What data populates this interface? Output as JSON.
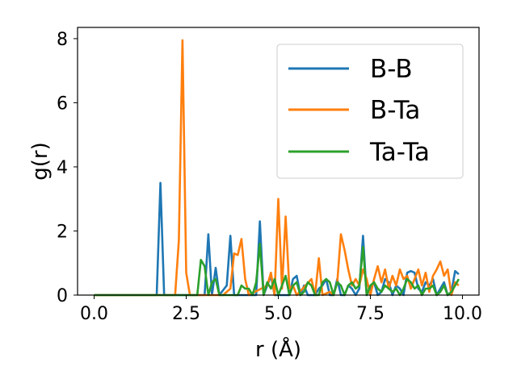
{
  "chart_data": {
    "type": "line",
    "title": "",
    "xlabel": "r (Å)",
    "ylabel": "g(r)",
    "xlim": [
      -0.45,
      10.45
    ],
    "ylim": [
      0,
      8.35
    ],
    "xticks": [
      "0.0",
      "2.5",
      "5.0",
      "7.5",
      "10.0"
    ],
    "yticks": [
      "0",
      "2",
      "4",
      "6",
      "8"
    ],
    "xtick_values": [
      0,
      2.5,
      5,
      7.5,
      10
    ],
    "ytick_values": [
      0,
      2,
      4,
      6,
      8
    ],
    "grid": false,
    "legend_position": "top-right",
    "series": [
      {
        "name": "B-B",
        "color": "#1f77b4",
        "points": [
          [
            0,
            0
          ],
          [
            1.7,
            0
          ],
          [
            1.8,
            3.5
          ],
          [
            1.9,
            0
          ],
          [
            2.1,
            0
          ],
          [
            2.2,
            0
          ],
          [
            3.0,
            0
          ],
          [
            3.1,
            1.9
          ],
          [
            3.2,
            0
          ],
          [
            3.3,
            0.85
          ],
          [
            3.4,
            0
          ],
          [
            3.6,
            0.3
          ],
          [
            3.7,
            1.85
          ],
          [
            3.8,
            0
          ],
          [
            4.4,
            0
          ],
          [
            4.5,
            2.3
          ],
          [
            4.6,
            0
          ],
          [
            4.8,
            0.6
          ],
          [
            4.9,
            0
          ],
          [
            5.3,
            0
          ],
          [
            5.4,
            0.5
          ],
          [
            5.5,
            0.6
          ],
          [
            5.6,
            0
          ],
          [
            5.7,
            0.3
          ],
          [
            5.8,
            0
          ],
          [
            6.0,
            0
          ],
          [
            6.1,
            0.2
          ],
          [
            6.2,
            0.3
          ],
          [
            6.3,
            0.5
          ],
          [
            6.4,
            0
          ],
          [
            6.5,
            0
          ],
          [
            6.6,
            0.5
          ],
          [
            6.7,
            0
          ],
          [
            6.8,
            0
          ],
          [
            6.9,
            0.3
          ],
          [
            7.0,
            0.2
          ],
          [
            7.1,
            0
          ],
          [
            7.2,
            0.2
          ],
          [
            7.3,
            1.85
          ],
          [
            7.4,
            0
          ],
          [
            7.5,
            0.2
          ],
          [
            7.6,
            0.4
          ],
          [
            7.7,
            0
          ],
          [
            7.8,
            0.1
          ],
          [
            7.9,
            0.5
          ],
          [
            8.0,
            0.4
          ],
          [
            8.1,
            0
          ],
          [
            8.2,
            0.3
          ],
          [
            8.3,
            0.2
          ],
          [
            8.4,
            0
          ],
          [
            8.5,
            0.7
          ],
          [
            8.6,
            0.75
          ],
          [
            8.7,
            0.7
          ],
          [
            8.8,
            0.2
          ],
          [
            8.9,
            0.1
          ],
          [
            9.0,
            0.4
          ],
          [
            9.1,
            0.3
          ],
          [
            9.2,
            0.5
          ],
          [
            9.3,
            0
          ],
          [
            9.4,
            0.2
          ],
          [
            9.5,
            0.4
          ],
          [
            9.6,
            0
          ],
          [
            9.7,
            0.1
          ],
          [
            9.8,
            0.75
          ],
          [
            9.9,
            0.65
          ]
        ]
      },
      {
        "name": "B-Ta",
        "color": "#ff7f0e",
        "points": [
          [
            0,
            0
          ],
          [
            2.2,
            0
          ],
          [
            2.3,
            1.7
          ],
          [
            2.4,
            7.95
          ],
          [
            2.5,
            0.7
          ],
          [
            2.6,
            0
          ],
          [
            3.5,
            0
          ],
          [
            3.7,
            0.2
          ],
          [
            3.8,
            1.3
          ],
          [
            3.9,
            1.25
          ],
          [
            4.0,
            1.75
          ],
          [
            4.1,
            0.5
          ],
          [
            4.2,
            0
          ],
          [
            4.7,
            0.3
          ],
          [
            4.8,
            0.7
          ],
          [
            4.9,
            0
          ],
          [
            5.0,
            3.0
          ],
          [
            5.1,
            0.2
          ],
          [
            5.2,
            2.45
          ],
          [
            5.3,
            0.2
          ],
          [
            5.4,
            0.3
          ],
          [
            5.5,
            0
          ],
          [
            5.9,
            0.5
          ],
          [
            6.0,
            0
          ],
          [
            6.1,
            1.15
          ],
          [
            6.2,
            0
          ],
          [
            6.4,
            0.1
          ],
          [
            6.5,
            0
          ],
          [
            6.6,
            0.4
          ],
          [
            6.7,
            1.9
          ],
          [
            6.8,
            1.4
          ],
          [
            6.9,
            0.8
          ],
          [
            7.0,
            0.3
          ],
          [
            7.1,
            0.5
          ],
          [
            7.2,
            0.3
          ],
          [
            7.3,
            0.8
          ],
          [
            7.4,
            0.5
          ],
          [
            7.5,
            0
          ],
          [
            7.6,
            0.5
          ],
          [
            7.7,
            0.9
          ],
          [
            7.8,
            0.4
          ],
          [
            7.9,
            0.8
          ],
          [
            8.0,
            0.2
          ],
          [
            8.1,
            0.6
          ],
          [
            8.2,
            0.3
          ],
          [
            8.3,
            0.8
          ],
          [
            8.4,
            0.5
          ],
          [
            8.5,
            0.6
          ],
          [
            8.6,
            0.2
          ],
          [
            8.7,
            0.5
          ],
          [
            8.8,
            0.8
          ],
          [
            8.9,
            0.3
          ],
          [
            9.0,
            0.7
          ],
          [
            9.1,
            0.1
          ],
          [
            9.2,
            0.6
          ],
          [
            9.3,
            0.8
          ],
          [
            9.4,
            1.05
          ],
          [
            9.5,
            0.6
          ],
          [
            9.6,
            0.8
          ],
          [
            9.7,
            0
          ],
          [
            9.8,
            0.4
          ],
          [
            9.9,
            0.3
          ]
        ]
      },
      {
        "name": "Ta-Ta",
        "color": "#2ca02c",
        "points": [
          [
            0,
            0
          ],
          [
            2.8,
            0
          ],
          [
            2.9,
            1.1
          ],
          [
            3.0,
            0.9
          ],
          [
            3.1,
            0
          ],
          [
            3.2,
            0.4
          ],
          [
            3.3,
            0.5
          ],
          [
            3.4,
            0
          ],
          [
            3.9,
            0
          ],
          [
            4.0,
            0.3
          ],
          [
            4.1,
            0.2
          ],
          [
            4.2,
            0.2
          ],
          [
            4.3,
            0
          ],
          [
            4.4,
            0.4
          ],
          [
            4.5,
            1.6
          ],
          [
            4.6,
            0
          ],
          [
            4.7,
            0.4
          ],
          [
            4.8,
            0.2
          ],
          [
            4.9,
            0.5
          ],
          [
            5.0,
            0
          ],
          [
            5.1,
            0.3
          ],
          [
            5.2,
            0.6
          ],
          [
            5.3,
            0
          ],
          [
            5.4,
            0.3
          ],
          [
            5.5,
            0.4
          ],
          [
            5.6,
            0
          ],
          [
            5.7,
            0.1
          ],
          [
            5.8,
            0.4
          ],
          [
            5.9,
            0.3
          ],
          [
            6.0,
            0
          ],
          [
            6.1,
            0
          ],
          [
            6.2,
            0.4
          ],
          [
            6.3,
            0.5
          ],
          [
            6.4,
            0.4
          ],
          [
            6.5,
            0
          ],
          [
            6.6,
            0.4
          ],
          [
            6.7,
            0.3
          ],
          [
            6.8,
            0
          ],
          [
            6.9,
            0.3
          ],
          [
            7.0,
            0.4
          ],
          [
            7.1,
            0.2
          ],
          [
            7.2,
            0.3
          ],
          [
            7.3,
            1.5
          ],
          [
            7.4,
            0
          ],
          [
            7.5,
            0.3
          ],
          [
            7.6,
            0.4
          ],
          [
            7.7,
            0.2
          ],
          [
            7.8,
            0.1
          ],
          [
            7.9,
            0.3
          ],
          [
            8.0,
            0.2
          ],
          [
            8.1,
            0.1
          ],
          [
            8.2,
            0.2
          ],
          [
            8.3,
            0
          ],
          [
            8.4,
            0.2
          ],
          [
            8.5,
            0.5
          ],
          [
            8.6,
            0.4
          ],
          [
            8.7,
            0.2
          ],
          [
            8.8,
            0.3
          ],
          [
            8.9,
            0
          ],
          [
            9.0,
            0.2
          ],
          [
            9.1,
            0.2
          ],
          [
            9.2,
            0.3
          ],
          [
            9.3,
            0
          ],
          [
            9.4,
            0.1
          ],
          [
            9.5,
            0.3
          ],
          [
            9.6,
            0
          ],
          [
            9.7,
            0.1
          ],
          [
            9.8,
            0.3
          ],
          [
            9.9,
            0.5
          ]
        ]
      }
    ]
  }
}
